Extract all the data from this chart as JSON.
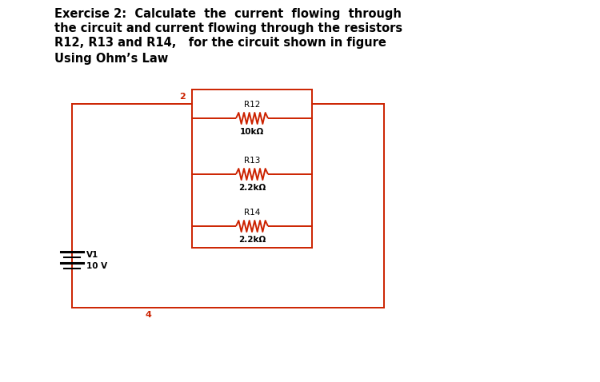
{
  "title_line1": "Exercise 2:  Calculate  the  current  flowing  through",
  "title_line2": "the circuit and current flowing through the resistors",
  "title_line3": "R12, R13 and R14,   for the circuit shown in figure",
  "title_line4": "Using Ohm’s Law",
  "circuit_color": "#cc2200",
  "text_color": "#000000",
  "bg_color": "#ffffff",
  "r12_label": "R12",
  "r12_value": "10kΩ",
  "r13_label": "R13",
  "r13_value": "2.2kΩ",
  "r14_label": "R14",
  "r14_value": "2.2kΩ",
  "v1_label": "V1",
  "v1_value": "10 V",
  "node2_label": "2",
  "node4_label": "4"
}
